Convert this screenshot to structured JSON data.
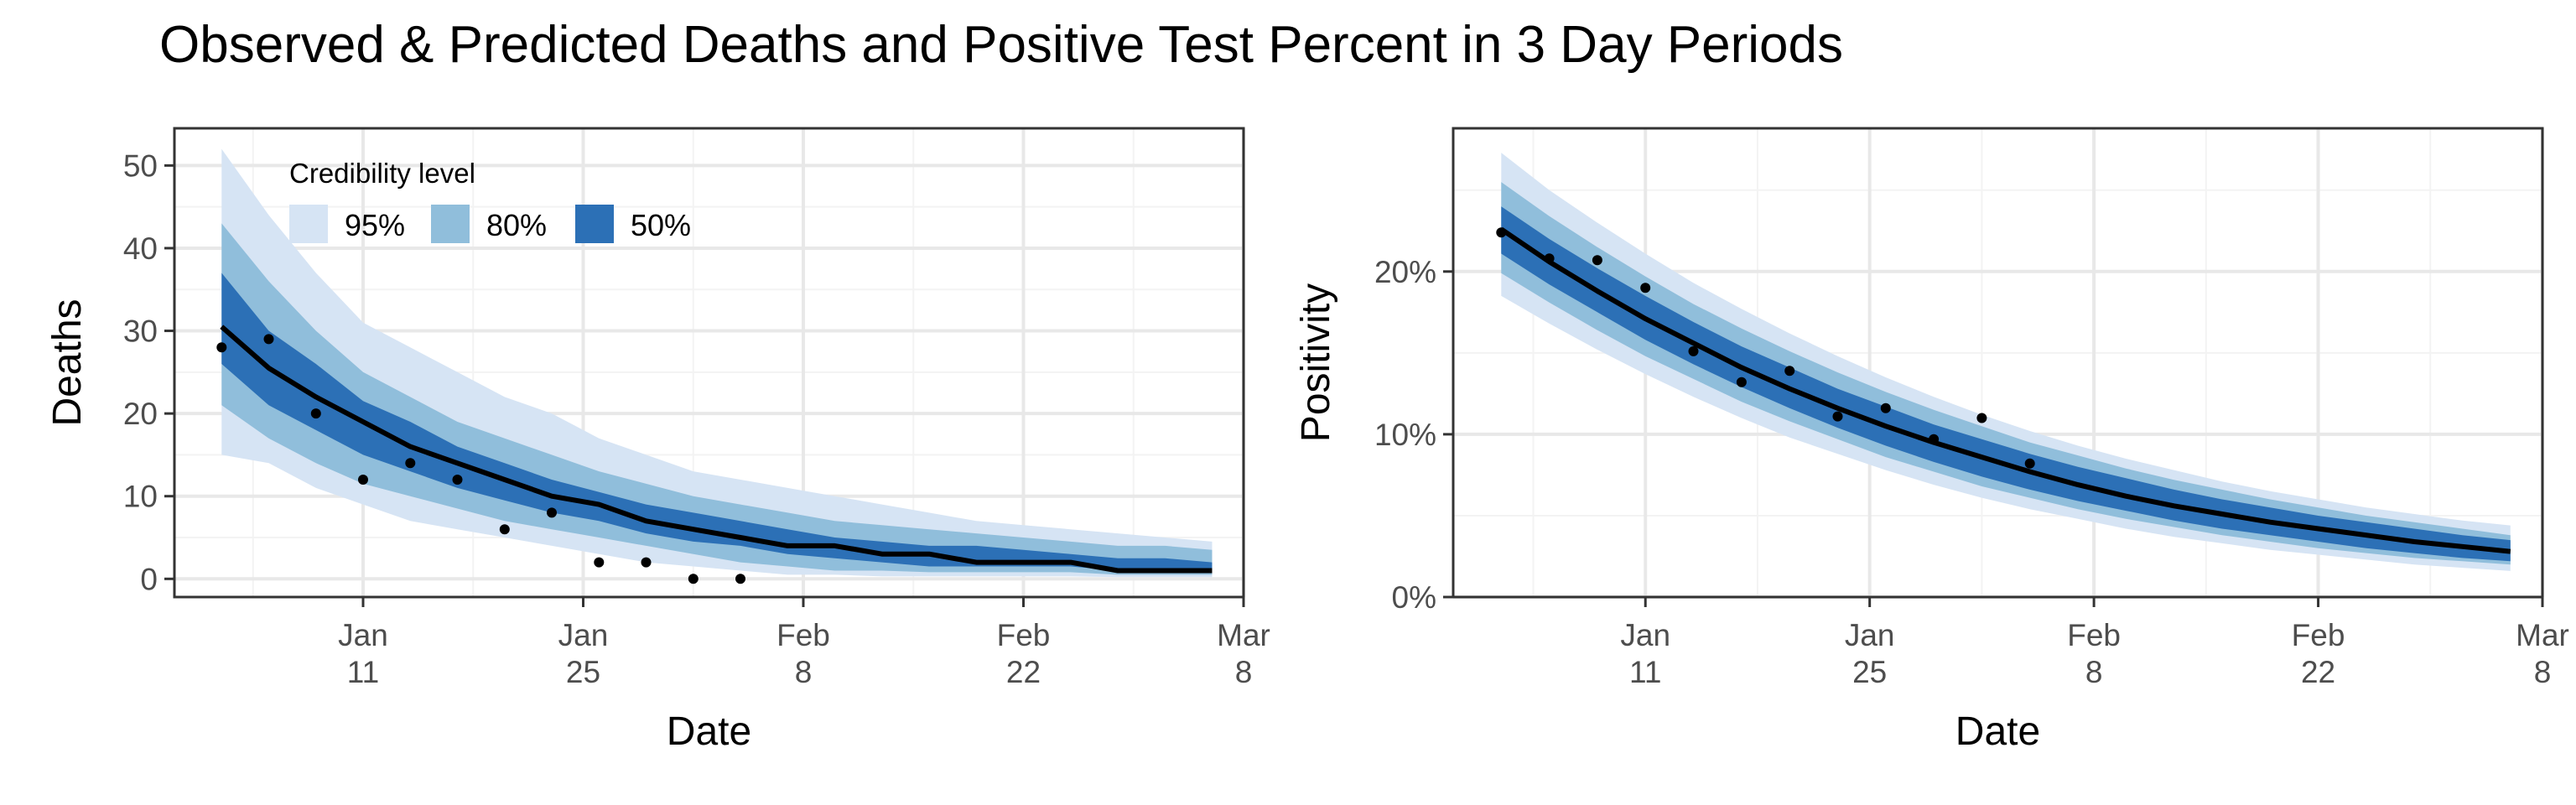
{
  "title": "Observed & Predicted Deaths and Positive Test Percent in 3 Day Periods",
  "colors": {
    "band95": "#d6e4f4",
    "band80": "#90bedb",
    "band50": "#2c70b6",
    "median": "#000000",
    "grid": "#e8e8e8",
    "points": "#000000"
  },
  "legend": {
    "title": "Credibility level",
    "items": [
      {
        "label": "95%",
        "color": "#d6e4f4"
      },
      {
        "label": "80%",
        "color": "#90bedb"
      },
      {
        "label": "50%",
        "color": "#2c70b6"
      }
    ],
    "placement": "top-left inside left panel"
  },
  "chart_data": [
    {
      "type": "area",
      "title": "",
      "xlabel": "Date",
      "ylabel": "Deaths",
      "x_ticks": [
        {
          "date": "Jan 11",
          "line1": "Jan",
          "line2": "11"
        },
        {
          "date": "Jan 25",
          "line1": "Jan",
          "line2": "25"
        },
        {
          "date": "Feb 8",
          "line1": "Feb",
          "line2": "8"
        },
        {
          "date": "Feb 22",
          "line1": "Feb",
          "line2": "22"
        },
        {
          "date": "Mar 8",
          "line1": "Mar",
          "line2": "8"
        }
      ],
      "xlim": [
        "Dec 30",
        "Mar 8"
      ],
      "y_ticks": [
        0,
        10,
        20,
        30,
        40,
        50
      ],
      "y_tick_labels": [
        "0",
        "10",
        "20",
        "30",
        "40",
        "50"
      ],
      "ylim": [
        -2.2,
        54.5
      ],
      "grid": true,
      "bands": {
        "x": [
          "Jan 2",
          "Jan 5",
          "Jan 8",
          "Jan 11",
          "Jan 14",
          "Jan 17",
          "Jan 20",
          "Jan 23",
          "Jan 26",
          "Jan 29",
          "Feb 1",
          "Feb 4",
          "Feb 7",
          "Feb 10",
          "Feb 13",
          "Feb 16",
          "Feb 19",
          "Feb 22",
          "Feb 25",
          "Feb 28",
          "Mar 3",
          "Mar 6"
        ],
        "lo95": [
          15,
          14,
          11,
          9,
          7,
          6,
          5,
          4,
          3,
          2,
          1.5,
          1,
          0.5,
          0.5,
          0.3,
          0.3,
          0.3,
          0.3,
          0.3,
          0.2,
          0.2,
          0.2
        ],
        "hi95": [
          52,
          44,
          37,
          31,
          28,
          25,
          22,
          20,
          17,
          15,
          13,
          12,
          11,
          10,
          9,
          8,
          7,
          6.5,
          6,
          5.5,
          5,
          4.5
        ],
        "lo80": [
          21,
          17,
          14,
          11.5,
          10,
          8.5,
          7,
          6,
          5,
          4,
          3,
          2,
          1.5,
          1,
          1,
          0.8,
          0.8,
          0.8,
          0.8,
          0.5,
          0.5,
          0.5
        ],
        "hi80": [
          43,
          36,
          30,
          25,
          22,
          19,
          17,
          15,
          13,
          11.5,
          10,
          9,
          8,
          7,
          6.5,
          6,
          5.5,
          5,
          4.5,
          4,
          4,
          3.5
        ],
        "lo50": [
          26,
          21,
          18,
          15,
          13,
          11,
          9.5,
          8,
          7,
          5.5,
          4.5,
          4,
          3,
          2.5,
          2,
          1.5,
          1.5,
          1.5,
          1.5,
          1,
          1,
          1
        ],
        "hi50": [
          37,
          30,
          26,
          21.5,
          19,
          16,
          14,
          12,
          10.5,
          9,
          8,
          7,
          6,
          5,
          4.5,
          4,
          4,
          3.5,
          3,
          2.5,
          2.5,
          2
        ],
        "median": [
          30.5,
          25.5,
          22,
          19,
          16,
          14,
          12,
          10,
          9,
          7,
          6,
          5,
          4,
          4,
          3,
          3,
          2,
          2,
          2,
          1,
          1,
          1
        ]
      },
      "observed": {
        "x": [
          "Jan 2",
          "Jan 5",
          "Jan 8",
          "Jan 11",
          "Jan 14",
          "Jan 17",
          "Jan 20",
          "Jan 23",
          "Jan 26",
          "Jan 29",
          "Feb 1",
          "Feb 4"
        ],
        "y": [
          28,
          29,
          20,
          12,
          14,
          12,
          6,
          8,
          2,
          2,
          0,
          0
        ]
      }
    },
    {
      "type": "area",
      "title": "",
      "xlabel": "Date",
      "ylabel": "Positivity",
      "x_ticks": [
        {
          "date": "Jan 11",
          "line1": "Jan",
          "line2": "11"
        },
        {
          "date": "Jan 25",
          "line1": "Jan",
          "line2": "25"
        },
        {
          "date": "Feb 8",
          "line1": "Feb",
          "line2": "8"
        },
        {
          "date": "Feb 22",
          "line1": "Feb",
          "line2": "22"
        },
        {
          "date": "Mar 8",
          "line1": "Mar",
          "line2": "8"
        }
      ],
      "xlim": [
        "Dec 30",
        "Mar 8"
      ],
      "y_ticks": [
        0,
        0.1,
        0.2
      ],
      "y_tick_labels": [
        "0%",
        "10%",
        "20%"
      ],
      "ylim": [
        0,
        0.288
      ],
      "grid": true,
      "bands": {
        "x": [
          "Jan 2",
          "Jan 5",
          "Jan 8",
          "Jan 11",
          "Jan 14",
          "Jan 17",
          "Jan 20",
          "Jan 23",
          "Jan 26",
          "Jan 29",
          "Feb 1",
          "Feb 4",
          "Feb 7",
          "Feb 10",
          "Feb 13",
          "Feb 16",
          "Feb 19",
          "Feb 22",
          "Feb 25",
          "Feb 28",
          "Mar 3",
          "Mar 6"
        ],
        "lo95": [
          0.185,
          0.168,
          0.152,
          0.137,
          0.123,
          0.11,
          0.098,
          0.088,
          0.078,
          0.069,
          0.061,
          0.054,
          0.048,
          0.042,
          0.037,
          0.033,
          0.029,
          0.026,
          0.023,
          0.02,
          0.018,
          0.016
        ],
        "hi95": [
          0.273,
          0.25,
          0.23,
          0.211,
          0.193,
          0.177,
          0.162,
          0.148,
          0.135,
          0.123,
          0.112,
          0.102,
          0.093,
          0.085,
          0.078,
          0.071,
          0.065,
          0.06,
          0.055,
          0.051,
          0.047,
          0.044
        ],
        "lo80": [
          0.199,
          0.181,
          0.164,
          0.148,
          0.134,
          0.12,
          0.108,
          0.097,
          0.086,
          0.077,
          0.068,
          0.061,
          0.054,
          0.048,
          0.043,
          0.038,
          0.034,
          0.03,
          0.027,
          0.024,
          0.022,
          0.02
        ],
        "hi80": [
          0.255,
          0.234,
          0.215,
          0.197,
          0.18,
          0.165,
          0.151,
          0.138,
          0.126,
          0.115,
          0.105,
          0.095,
          0.087,
          0.079,
          0.072,
          0.066,
          0.06,
          0.055,
          0.05,
          0.046,
          0.042,
          0.038
        ],
        "lo50": [
          0.211,
          0.192,
          0.175,
          0.158,
          0.143,
          0.129,
          0.116,
          0.104,
          0.093,
          0.083,
          0.074,
          0.066,
          0.059,
          0.053,
          0.047,
          0.042,
          0.038,
          0.034,
          0.03,
          0.027,
          0.024,
          0.022
        ],
        "hi50": [
          0.24,
          0.22,
          0.202,
          0.185,
          0.169,
          0.154,
          0.141,
          0.128,
          0.117,
          0.106,
          0.097,
          0.088,
          0.08,
          0.073,
          0.066,
          0.06,
          0.055,
          0.05,
          0.046,
          0.042,
          0.038,
          0.035
        ],
        "median": [
          0.226,
          0.206,
          0.188,
          0.171,
          0.156,
          0.141,
          0.128,
          0.116,
          0.105,
          0.095,
          0.086,
          0.077,
          0.069,
          0.062,
          0.056,
          0.051,
          0.046,
          0.042,
          0.038,
          0.034,
          0.031,
          0.028
        ]
      },
      "observed": {
        "x": [
          "Jan 2",
          "Jan 5",
          "Jan 8",
          "Jan 11",
          "Jan 14",
          "Jan 17",
          "Jan 20",
          "Jan 23",
          "Jan 26",
          "Jan 29",
          "Feb 1",
          "Feb 4"
        ],
        "y": [
          0.224,
          0.208,
          0.207,
          0.19,
          0.151,
          0.132,
          0.139,
          0.111,
          0.116,
          0.097,
          0.11,
          0.082
        ]
      }
    }
  ]
}
